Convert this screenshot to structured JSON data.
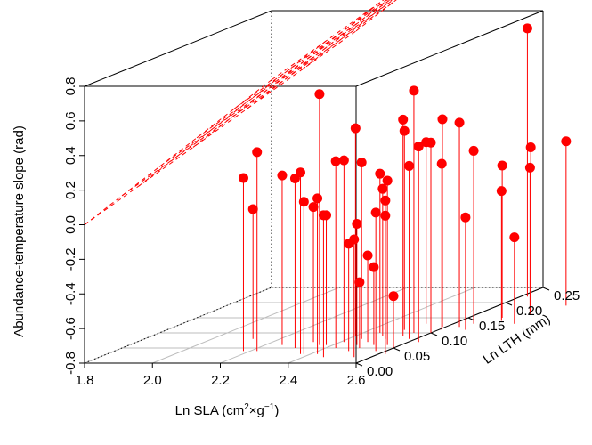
{
  "chart_data": {
    "type": "scatter-3d",
    "title": "",
    "xlabel": "Ln SLA",
    "ylabel": "Ln LTH (mm)",
    "zlabel": "Abundance-temperature slope (rad)",
    "x_ticks": [
      "1.8",
      "2.0",
      "2.2",
      "2.4",
      "2.6"
    ],
    "y_ticks": [
      "0.00",
      "0.05",
      "0.10",
      "0.15",
      "0.20",
      "0.25"
    ],
    "z_ticks": [
      "-0.8",
      "-0.6",
      "-0.4",
      "-0.2",
      "0.0",
      "0.2",
      "0.4",
      "0.6",
      "0.8"
    ],
    "xlim": [
      1.8,
      2.6
    ],
    "ylim": [
      0.0,
      0.25
    ],
    "zlim": [
      -0.8,
      0.8
    ],
    "point_color": "#ff0000",
    "plane_color": "#ff0000",
    "grid": true,
    "points": [
      {
        "x": 2.12,
        "y": 0.08,
        "z": -0.05
      },
      {
        "x": 2.18,
        "y": 0.04,
        "z": 0.2
      },
      {
        "x": 2.22,
        "y": 0.04,
        "z": 0.35
      },
      {
        "x": 2.25,
        "y": 0.06,
        "z": 0.18
      },
      {
        "x": 2.31,
        "y": 0.05,
        "z": 0.18
      },
      {
        "x": 2.32,
        "y": 0.07,
        "z": -0.02
      },
      {
        "x": 2.36,
        "y": 0.06,
        "z": 0.65
      },
      {
        "x": 2.37,
        "y": 0.03,
        "z": 0.25
      },
      {
        "x": 2.38,
        "y": 0.03,
        "z": 0.08
      },
      {
        "x": 2.38,
        "y": 0.06,
        "z": -0.05
      },
      {
        "x": 2.4,
        "y": 0.09,
        "z": 0.4
      },
      {
        "x": 2.41,
        "y": 0.07,
        "z": 0.25
      },
      {
        "x": 2.42,
        "y": 0.03,
        "z": 0.1
      },
      {
        "x": 2.43,
        "y": 0.05,
        "z": 0.28
      },
      {
        "x": 2.44,
        "y": 0.08,
        "z": 0.22
      },
      {
        "x": 2.45,
        "y": 0.1,
        "z": 0.12
      },
      {
        "x": 2.46,
        "y": 0.02,
        "z": 0.02
      },
      {
        "x": 2.47,
        "y": 0.06,
        "z": -0.1
      },
      {
        "x": 2.48,
        "y": 0.07,
        "z": -0.3
      },
      {
        "x": 2.48,
        "y": 0.09,
        "z": 0.05
      },
      {
        "x": 2.49,
        "y": 0.04,
        "z": -0.18
      },
      {
        "x": 2.5,
        "y": 0.11,
        "z": 0.35
      },
      {
        "x": 2.5,
        "y": 0.05,
        "z": -0.42
      },
      {
        "x": 2.51,
        "y": 0.08,
        "z": 0.0
      },
      {
        "x": 2.52,
        "y": 0.06,
        "z": -0.35
      },
      {
        "x": 2.54,
        "y": 0.09,
        "z": 0.45
      },
      {
        "x": 2.55,
        "y": 0.1,
        "z": 0.6
      },
      {
        "x": 2.56,
        "y": 0.06,
        "z": 0.15
      },
      {
        "x": 2.57,
        "y": 0.04,
        "z": 0.0
      },
      {
        "x": 2.58,
        "y": 0.08,
        "z": 0.2
      },
      {
        "x": 2.59,
        "y": 0.12,
        "z": 0.4
      },
      {
        "x": 2.6,
        "y": 0.1,
        "z": 0.3
      },
      {
        "x": 2.61,
        "y": 0.11,
        "z": 0.16
      },
      {
        "x": 2.62,
        "y": 0.03,
        "z": 0.0
      },
      {
        "x": 2.63,
        "y": 0.07,
        "z": 0.33
      },
      {
        "x": 2.64,
        "y": 0.12,
        "z": 0.38
      },
      {
        "x": 2.6,
        "y": 0.05,
        "z": -0.5
      },
      {
        "x": 2.55,
        "y": 0.02,
        "z": -0.12
      },
      {
        "x": 2.52,
        "y": 0.13,
        "z": 0.25
      },
      {
        "x": 2.66,
        "y": 0.13,
        "z": 0.2
      },
      {
        "x": 2.68,
        "y": 0.11,
        "z": -0.15
      },
      {
        "x": 2.7,
        "y": 0.15,
        "z": 0.08
      },
      {
        "x": 2.72,
        "y": 0.14,
        "z": -0.05
      },
      {
        "x": 2.74,
        "y": 0.17,
        "z": 0.15
      },
      {
        "x": 2.76,
        "y": 0.16,
        "z": 0.05
      },
      {
        "x": 2.78,
        "y": 0.13,
        "z": -0.3
      },
      {
        "x": 2.8,
        "y": 0.19,
        "z": 0.15
      },
      {
        "x": 2.62,
        "y": 0.22,
        "z": 0.75
      },
      {
        "x": 2.9,
        "y": 0.2,
        "z": 0.0
      }
    ]
  }
}
